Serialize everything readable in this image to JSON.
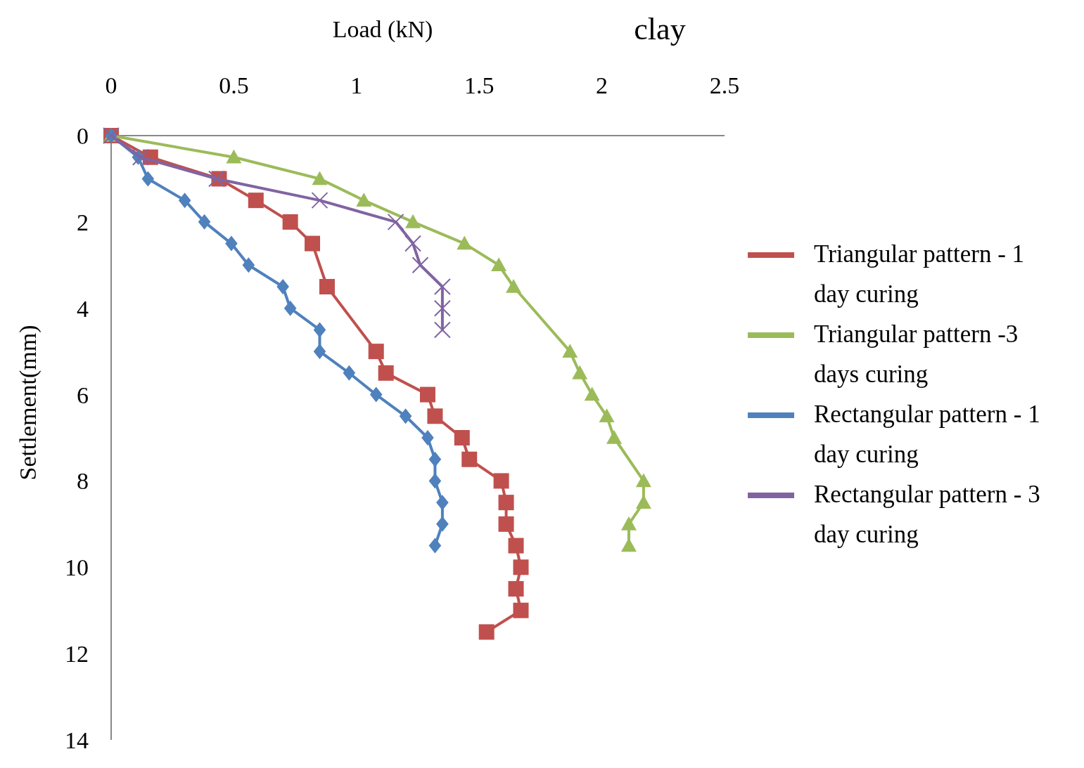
{
  "chart_data": {
    "type": "line",
    "title": "clay",
    "xlabel": "Load (kN)",
    "ylabel": "Settlement(mm)",
    "xlim": [
      0,
      2.5
    ],
    "xticks": [
      0,
      0.5,
      1,
      1.5,
      2,
      2.5
    ],
    "ylim": [
      14,
      0
    ],
    "yticks": [
      0,
      2,
      4,
      6,
      8,
      10,
      12,
      14
    ],
    "grid": false,
    "legend": "right",
    "series": [
      {
        "name": "Triangular pattern - 1 day curing",
        "color": "#c0504d",
        "marker": "square",
        "x": [
          0,
          0.16,
          0.44,
          0.59,
          0.73,
          0.82,
          0.88,
          1.08,
          1.12,
          1.29,
          1.32,
          1.43,
          1.46,
          1.59,
          1.61,
          1.61,
          1.65,
          1.67,
          1.65,
          1.67,
          1.53
        ],
        "values": [
          0,
          0.5,
          1,
          1.5,
          2,
          2.5,
          3.5,
          5,
          5.5,
          6,
          6.5,
          7,
          7.5,
          8,
          8.5,
          9,
          9.5,
          10,
          10.5,
          11,
          11.5
        ]
      },
      {
        "name": "Triangular pattern -3 days curing",
        "color": "#9bbb59",
        "marker": "triangle",
        "x": [
          0,
          0.5,
          0.85,
          1.03,
          1.23,
          1.44,
          1.58,
          1.64,
          1.87,
          1.91,
          1.96,
          2.02,
          2.05,
          2.17,
          2.17,
          2.11,
          2.11
        ],
        "values": [
          0,
          0.5,
          1,
          1.5,
          2,
          2.5,
          3,
          3.5,
          5,
          5.5,
          6,
          6.5,
          7,
          8,
          8.5,
          9,
          9.5
        ]
      },
      {
        "name": "Rectangular pattern - 1 day curing",
        "color": "#4f81bd",
        "marker": "diamond",
        "x": [
          0,
          0.11,
          0.15,
          0.3,
          0.38,
          0.49,
          0.56,
          0.7,
          0.73,
          0.85,
          0.85,
          0.97,
          1.08,
          1.2,
          1.29,
          1.32,
          1.32,
          1.35,
          1.35,
          1.32
        ],
        "values": [
          0,
          0.5,
          1,
          1.5,
          2,
          2.5,
          3,
          3.5,
          4,
          4.5,
          5,
          5.5,
          6,
          6.5,
          7,
          7.5,
          8,
          8.5,
          9,
          9.5
        ]
      },
      {
        "name": "Rectangular pattern - 3 day curing",
        "color": "#8064a2",
        "marker": "cross",
        "x": [
          0,
          0.12,
          0.43,
          0.85,
          1.16,
          1.23,
          1.26,
          1.35,
          1.35,
          1.35
        ],
        "values": [
          0,
          0.5,
          1,
          1.5,
          2,
          2.5,
          3,
          3.5,
          4,
          4.5
        ]
      }
    ]
  }
}
